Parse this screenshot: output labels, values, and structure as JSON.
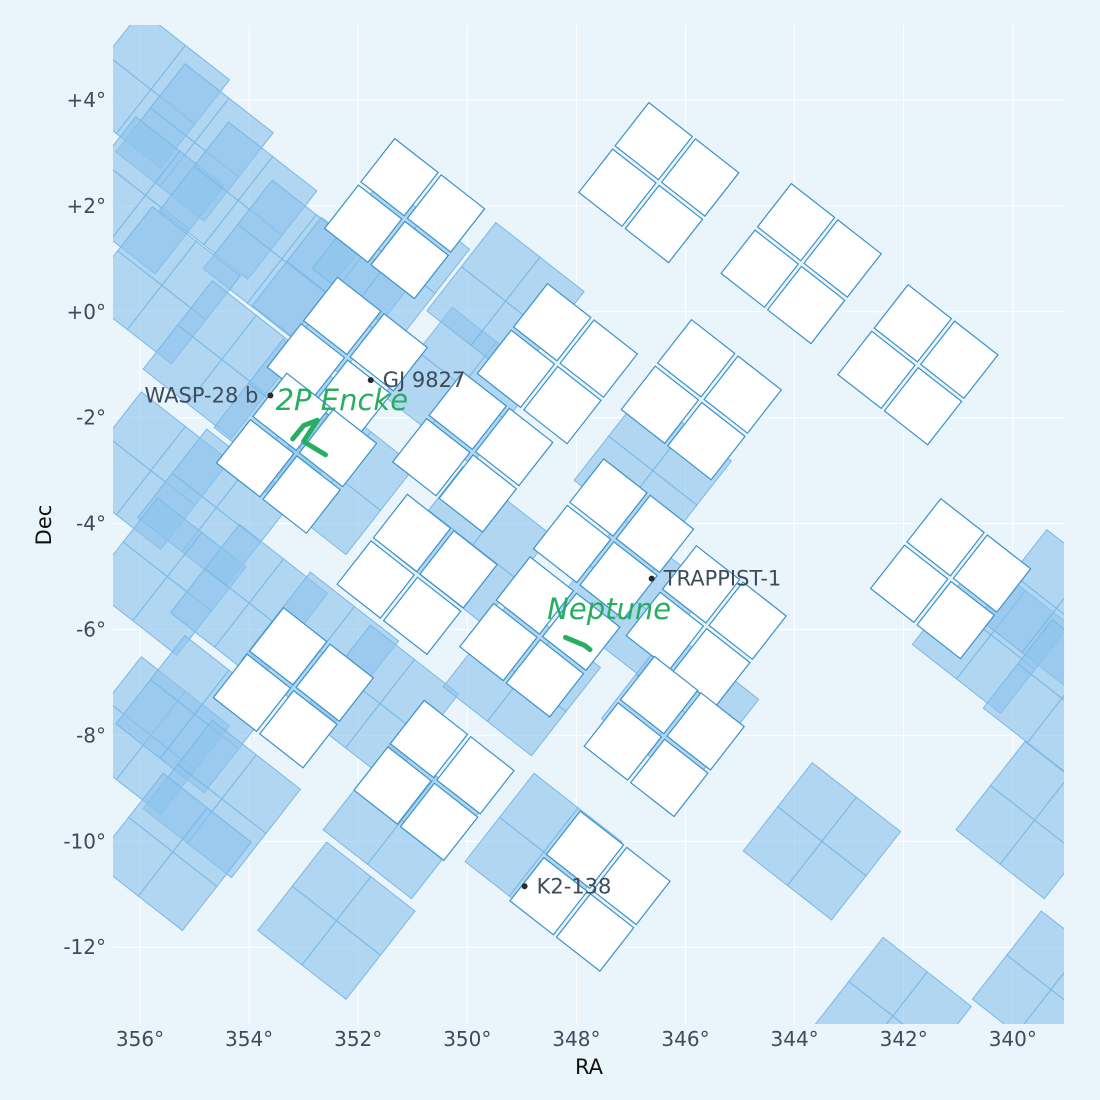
{
  "chart_data": {
    "type": "scatter",
    "title": "",
    "xlabel": "RA",
    "ylabel": "Dec",
    "xlim": [
      356.5,
      339.1
    ],
    "ylim": [
      -13.4,
      5.0
    ],
    "x_inverted": true,
    "grid": true,
    "x_ticks": [
      {
        "value": 356,
        "label": "356°"
      },
      {
        "value": 354,
        "label": "354°"
      },
      {
        "value": 352,
        "label": "352°"
      },
      {
        "value": 350,
        "label": "350°"
      },
      {
        "value": 348,
        "label": "348°"
      },
      {
        "value": 346,
        "label": "346°"
      },
      {
        "value": 344,
        "label": "344°"
      },
      {
        "value": 342,
        "label": "342°"
      },
      {
        "value": 340,
        "label": "340°"
      }
    ],
    "y_ticks": [
      {
        "value": 4,
        "label": "+4°"
      },
      {
        "value": 2,
        "label": "+2°"
      },
      {
        "value": 0,
        "label": "+0°"
      },
      {
        "value": -2,
        "label": "-2°"
      },
      {
        "value": -4,
        "label": "-4°"
      },
      {
        "value": -6,
        "label": "-6°"
      },
      {
        "value": -8,
        "label": "-8°"
      },
      {
        "value": -10,
        "label": "-10°"
      },
      {
        "value": -12,
        "label": "-12°"
      }
    ],
    "coverage_modules": [
      {
        "ra": 355.8,
        "dec": 4.2
      },
      {
        "ra": 355.0,
        "dec": 3.2
      },
      {
        "ra": 355.9,
        "dec": 2.2
      },
      {
        "ra": 354.2,
        "dec": 2.1
      },
      {
        "ra": 353.4,
        "dec": 1.0
      },
      {
        "ra": 355.6,
        "dec": 0.5
      },
      {
        "ra": 354.5,
        "dec": -0.9
      },
      {
        "ra": 352.5,
        "dec": 0.3
      },
      {
        "ra": 355.8,
        "dec": -3.0
      },
      {
        "ra": 353.2,
        "dec": -2.0
      },
      {
        "ra": 354.6,
        "dec": -3.7
      },
      {
        "ra": 352.4,
        "dec": -3.1
      },
      {
        "ra": 355.5,
        "dec": -5.0
      },
      {
        "ra": 354.0,
        "dec": -5.5
      },
      {
        "ra": 352.7,
        "dec": -6.4
      },
      {
        "ra": 355.8,
        "dec": -8.0
      },
      {
        "ra": 355.0,
        "dec": -7.6
      },
      {
        "ra": 354.5,
        "dec": -9.2
      },
      {
        "ra": 355.4,
        "dec": -10.2
      },
      {
        "ra": 352.4,
        "dec": -11.5
      },
      {
        "ra": 351.6,
        "dec": -7.4
      },
      {
        "ra": 351.2,
        "dec": -9.6
      },
      {
        "ra": 350.1,
        "dec": -1.4
      },
      {
        "ra": 349.9,
        "dec": -4.4
      },
      {
        "ra": 349.0,
        "dec": -6.9
      },
      {
        "ra": 348.6,
        "dec": -10.2
      },
      {
        "ra": 346.6,
        "dec": -3.0
      },
      {
        "ra": 347.0,
        "dec": -5.4
      },
      {
        "ra": 346.1,
        "dec": -7.5
      },
      {
        "ra": 351.4,
        "dec": 1.0
      },
      {
        "ra": 349.3,
        "dec": 0.2
      },
      {
        "ra": 343.5,
        "dec": -10.0
      },
      {
        "ra": 340.4,
        "dec": -6.1
      },
      {
        "ra": 339.6,
        "dec": -9.6
      },
      {
        "ra": 342.2,
        "dec": -13.3
      },
      {
        "ra": 339.3,
        "dec": -12.8
      },
      {
        "ra": 339.2,
        "dec": -5.6
      },
      {
        "ra": 339.1,
        "dec": -7.3
      }
    ],
    "sectors_outlined": [
      {
        "ra": 351.15,
        "dec": 1.76
      },
      {
        "ra": 346.49,
        "dec": 2.44
      },
      {
        "ra": 343.88,
        "dec": 0.91
      },
      {
        "ra": 352.2,
        "dec": -0.86
      },
      {
        "ra": 348.35,
        "dec": -0.98
      },
      {
        "ra": 341.74,
        "dec": -1.0
      },
      {
        "ra": 345.71,
        "dec": -1.66
      },
      {
        "ra": 349.9,
        "dec": -2.65
      },
      {
        "ra": 353.13,
        "dec": -2.67
      },
      {
        "ra": 347.32,
        "dec": -4.29
      },
      {
        "ra": 350.92,
        "dec": -4.96
      },
      {
        "ra": 341.14,
        "dec": -5.04
      },
      {
        "ra": 345.62,
        "dec": -5.93
      },
      {
        "ra": 348.67,
        "dec": -6.14
      },
      {
        "ra": 353.19,
        "dec": -7.1
      },
      {
        "ra": 346.39,
        "dec": -8.02
      },
      {
        "ra": 350.61,
        "dec": -8.85
      },
      {
        "ra": 347.75,
        "dec": -10.94
      }
    ],
    "targets": [
      {
        "name": "GJ 9827",
        "ra": 351.77,
        "dec": -1.29,
        "label_side": "right"
      },
      {
        "name": "WASP-28 b",
        "ra": 353.61,
        "dec": -1.58,
        "label_side": "left"
      },
      {
        "name": "TRAPPIST-1",
        "ra": 346.62,
        "dec": -5.04,
        "label_side": "right"
      },
      {
        "name": "K2-138",
        "ra": 348.95,
        "dec": -10.85,
        "label_side": "right"
      }
    ],
    "solar_system_objects": [
      {
        "name": "2P Encke",
        "label_ra": 352.3,
        "label_dec": -1.85,
        "track": [
          [
            353.2,
            -2.4
          ],
          [
            353.0,
            -2.15
          ],
          [
            352.75,
            -2.05
          ],
          [
            353.0,
            -2.45
          ],
          [
            352.6,
            -2.7
          ]
        ]
      },
      {
        "name": "Neptune",
        "label_ra": 347.4,
        "label_dec": -5.8,
        "track": [
          [
            348.2,
            -6.15
          ],
          [
            347.85,
            -6.3
          ],
          [
            347.75,
            -6.38
          ]
        ]
      }
    ],
    "colors": {
      "background": "#eaf4fb",
      "coverage_fill": "#8ec4ec",
      "coverage_edge": "#7ab8e6",
      "outline_edge": "#3a93c9",
      "outline_fill": "#ffffff",
      "target_dot": "#2b2b2b",
      "target_text": "#3d4b5a",
      "sso_color": "#27ae60",
      "grid": "#ffffff"
    }
  }
}
